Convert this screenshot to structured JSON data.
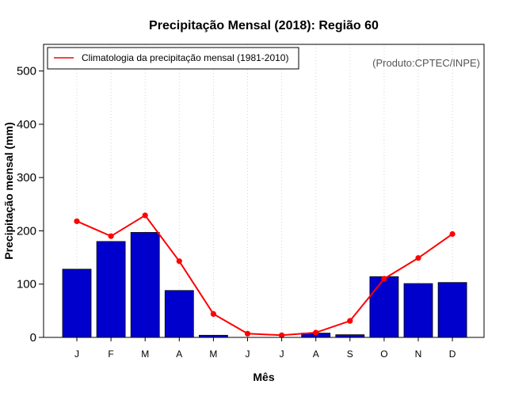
{
  "chart_data": {
    "type": "bar",
    "title": "Precipitação Mensal (2018): Região 60",
    "xlabel": "Mês",
    "ylabel": "Precipitação mensal (mm)",
    "ylim": [
      0,
      550
    ],
    "yticks": [
      0,
      100,
      200,
      300,
      400,
      500
    ],
    "categories": [
      "J",
      "F",
      "M",
      "A",
      "M",
      "J",
      "J",
      "A",
      "S",
      "O",
      "N",
      "D"
    ],
    "series": [
      {
        "name": "Precipitação mensal (2018)",
        "type": "bar",
        "color": "#0000cd",
        "values": [
          128,
          180,
          197,
          88,
          4,
          0,
          0,
          8,
          5,
          114,
          101,
          103
        ]
      },
      {
        "name": "Climatologia da precipitação mensal (1981-2010)",
        "type": "line",
        "color": "#ff0000",
        "values": [
          218,
          190,
          229,
          143,
          44,
          7,
          4,
          9,
          31,
          110,
          149,
          194
        ]
      }
    ],
    "legend": {
      "position": "top-left",
      "entries": [
        "Climatologia da precipitação mensal (1981-2010)"
      ]
    },
    "credit": "(Produto:CPTEC/INPE)",
    "grid": "vertical dotted"
  }
}
